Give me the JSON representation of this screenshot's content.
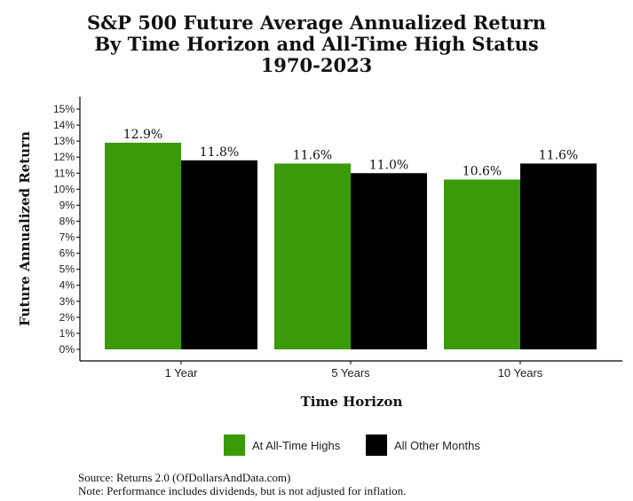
{
  "title_lines": [
    "S&P 500 Future Average Annualized Return",
    "By Time Horizon and All-Time High Status",
    "1970-2023"
  ],
  "footer": {
    "source": "Source:  Returns 2.0 (OfDollarsAndData.com)",
    "note": "Note: Performance includes dividends, but is not adjusted for inflation."
  },
  "chart_data": {
    "type": "bar",
    "title": "S&P 500 Future Average Annualized Return By Time Horizon and All-Time High Status 1970-2023",
    "xlabel": "Time Horizon",
    "ylabel": "Future Annualized Return",
    "categories": [
      "1 Year",
      "5 Years",
      "10 Years"
    ],
    "series": [
      {
        "name": "At All-Time Highs",
        "color": "#3a9a0a",
        "values": [
          12.9,
          11.6,
          10.6
        ],
        "labels": [
          "12.9%",
          "11.6%",
          "10.6%"
        ]
      },
      {
        "name": "All Other Months",
        "color": "#000000",
        "values": [
          11.8,
          11.0,
          11.6
        ],
        "labels": [
          "11.8%",
          "11.0%",
          "11.6%"
        ]
      }
    ],
    "ylim": [
      0,
      15
    ],
    "yticks": [
      "0%",
      "1%",
      "2%",
      "3%",
      "4%",
      "5%",
      "6%",
      "7%",
      "8%",
      "9%",
      "10%",
      "11%",
      "12%",
      "13%",
      "14%",
      "15%"
    ],
    "grid": false,
    "legend_position": "bottom"
  }
}
